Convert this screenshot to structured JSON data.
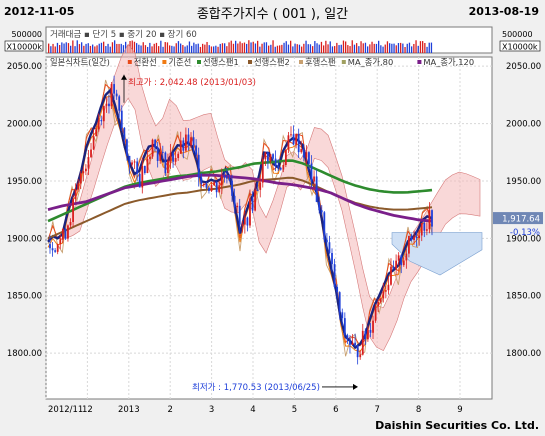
{
  "header": {
    "start_date": "2012-11-05",
    "title": "종합주가지수 ( 001 ), 일간",
    "end_date": "2013-08-19"
  },
  "footer": {
    "copyright": "Daishin Securities Co. Ltd."
  },
  "volume_panel": {
    "legend": "거래대금  ▪ 단기 5  ▪ 중기 20  ▪ 장기 60",
    "y_ticks": [
      "500000",
      "X10000k"
    ],
    "bar_colors": {
      "up": "#d91e1e",
      "down": "#1e3fd9"
    }
  },
  "price_panel": {
    "legend_items": [
      {
        "label": "일본식차트(일간)",
        "color": "#d91e1e"
      },
      {
        "label": "전환선",
        "color": "#e84a1a"
      },
      {
        "label": "기준선",
        "color": "#f07a12"
      },
      {
        "label": "선행스팬1",
        "color": "#2e8b2e"
      },
      {
        "label": "선행스팬2",
        "color": "#8b5a2b"
      },
      {
        "label": "후행스팬",
        "color": "#c8a070"
      },
      {
        "label": "MA_종가,80",
        "color": "#a0a060"
      },
      {
        "label": "MA_종가,120",
        "color": "#7a1f8a"
      }
    ],
    "high_annotation": "최고가 : 2,042.48 (2013/01/03)",
    "low_annotation": "최저가 : 1,770.53 (2013/06/25)",
    "last_value": "1,917.64",
    "last_change": "-0.13%",
    "colors": {
      "kumo_bull": "#f4b8b8",
      "kumo_bear": "#cfe0f5",
      "ma_short": "#1a237e",
      "ma_mid": "#2e8b2e",
      "ma_long": "#7a1f8a",
      "ma_brown": "#8b5a2b"
    }
  },
  "x_ticks": [
    "2012/11",
    "12",
    "2013",
    "2",
    "3",
    "4",
    "5",
    "6",
    "7",
    "8",
    "9"
  ],
  "chart_data": {
    "type": "candlestick",
    "title": "종합주가지수 (001), 일간",
    "period": [
      "2012-11-05",
      "2013-08-19"
    ],
    "y_ticks": [
      "2050.00",
      "2000.00",
      "1950.00",
      "1900.00",
      "1850.00",
      "1800.00"
    ],
    "ylim": [
      1760,
      2058
    ],
    "months": [
      "2012/11",
      "12",
      "2013",
      "2",
      "3",
      "4",
      "5",
      "6",
      "7",
      "8",
      "9"
    ],
    "close": [
      1895,
      1900,
      1935,
      1975,
      2010,
      2030,
      1975,
      1950,
      1985,
      1965,
      1975,
      1985,
      1950,
      1945,
      1960,
      1905,
      1935,
      1975,
      1960,
      1990,
      1975,
      1935,
      1880,
      1820,
      1800,
      1820,
      1855,
      1870,
      1890,
      1910,
      1918
    ],
    "series": [
      {
        "name": "MA_종가,120",
        "values": [
          1925,
          1928,
          1930,
          1932,
          1936,
          1940,
          1944,
          1946,
          1948,
          1950,
          1952,
          1954,
          1955,
          1955,
          1954,
          1953,
          1952,
          1950,
          1948,
          1947,
          1945,
          1943,
          1940,
          1935,
          1930,
          1926,
          1923,
          1920,
          1918,
          1916,
          1915
        ]
      },
      {
        "name": "MA_종가,80",
        "values": [
          1915,
          1920,
          1925,
          1930,
          1935,
          1940,
          1945,
          1948,
          1950,
          1952,
          1954,
          1955,
          1957,
          1958,
          1960,
          1962,
          1965,
          1966,
          1967,
          1968,
          1965,
          1960,
          1955,
          1950,
          1946,
          1943,
          1941,
          1940,
          1940,
          1941,
          1942
        ]
      }
    ],
    "annotations": [
      {
        "label": "최고가",
        "value": 2042.48,
        "date": "2013/01/03"
      },
      {
        "label": "최저가",
        "value": 1770.53,
        "date": "2013/06/25"
      }
    ],
    "last": {
      "value": 1917.64,
      "change_pct": -0.13
    }
  }
}
